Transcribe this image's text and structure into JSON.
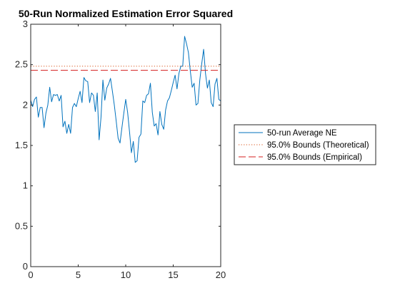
{
  "chart_data": {
    "type": "line",
    "title": "50-Run Normalized Estimation Error Squared",
    "xlabel": "",
    "ylabel": "",
    "xlim": [
      0,
      20
    ],
    "ylim": [
      0,
      3
    ],
    "grid": false,
    "legend_position": "right",
    "x_ticks": [
      "0",
      "5",
      "10",
      "15",
      "20"
    ],
    "y_ticks": [
      "0",
      "0.5",
      "1",
      "1.5",
      "2",
      "2.5",
      "3"
    ],
    "series": [
      {
        "name": "50-run Average NE",
        "style": "solid",
        "color": "#0072BD",
        "x": [
          0,
          0.2,
          0.4,
          0.6,
          0.8,
          1.0,
          1.2,
          1.4,
          1.6,
          1.8,
          2.0,
          2.2,
          2.4,
          2.6,
          2.8,
          3.0,
          3.2,
          3.4,
          3.6,
          3.8,
          4.0,
          4.2,
          4.4,
          4.6,
          4.8,
          5.0,
          5.2,
          5.4,
          5.6,
          5.8,
          6.0,
          6.2,
          6.4,
          6.6,
          6.8,
          7.0,
          7.2,
          7.4,
          7.6,
          7.8,
          8.0,
          8.2,
          8.4,
          8.6,
          8.8,
          9.0,
          9.2,
          9.4,
          9.6,
          9.8,
          10.0,
          10.2,
          10.4,
          10.6,
          10.8,
          11.0,
          11.2,
          11.4,
          11.6,
          11.8,
          12.0,
          12.2,
          12.4,
          12.6,
          12.8,
          13.0,
          13.2,
          13.4,
          13.6,
          13.8,
          14.0,
          14.2,
          14.4,
          14.6,
          14.8,
          15.0,
          15.2,
          15.4,
          15.6,
          15.8,
          16.0,
          16.2,
          16.4,
          16.6,
          16.8,
          17.0,
          17.2,
          17.4,
          17.6,
          17.8,
          18.0,
          18.2,
          18.4,
          18.6,
          18.8,
          19.0,
          19.2,
          19.4,
          19.6,
          19.8,
          20.0
        ],
        "values": [
          2.06,
          1.98,
          2.07,
          2.1,
          1.85,
          1.97,
          1.97,
          1.72,
          1.9,
          2.0,
          2.22,
          2.04,
          2.13,
          2.12,
          2.13,
          2.05,
          2.12,
          1.73,
          1.8,
          1.65,
          1.76,
          1.65,
          1.97,
          2.02,
          1.98,
          2.08,
          2.17,
          2.03,
          2.34,
          2.3,
          2.29,
          2.03,
          2.15,
          2.12,
          1.92,
          2.15,
          1.57,
          1.85,
          2.31,
          2.06,
          2.21,
          2.26,
          2.33,
          2.17,
          2.0,
          1.8,
          1.59,
          1.53,
          1.72,
          1.9,
          2.07,
          1.91,
          1.67,
          1.41,
          1.55,
          1.29,
          1.31,
          1.6,
          1.64,
          2.05,
          2.03,
          2.12,
          2.14,
          2.27,
          1.91,
          1.74,
          1.77,
          1.63,
          1.92,
          1.76,
          1.7,
          1.94,
          2.05,
          2.09,
          2.18,
          2.28,
          2.37,
          2.2,
          2.39,
          2.48,
          2.48,
          2.85,
          2.76,
          2.65,
          2.42,
          2.22,
          2.27,
          2.0,
          2.02,
          2.31,
          2.51,
          2.69,
          2.39,
          2.21,
          2.31,
          2.03,
          1.98,
          2.26,
          2.33,
          2.07,
          2.05
        ]
      },
      {
        "name": "95.0% Bounds (Theoretical)",
        "style": "dotted",
        "color": "#D95319",
        "upper": 2.48,
        "lower": 0.0
      },
      {
        "name": "95.0% Bounds (Empirical)",
        "style": "dashed",
        "color": "#D41F1F",
        "upper": 2.43,
        "lower": 0.0
      }
    ]
  }
}
